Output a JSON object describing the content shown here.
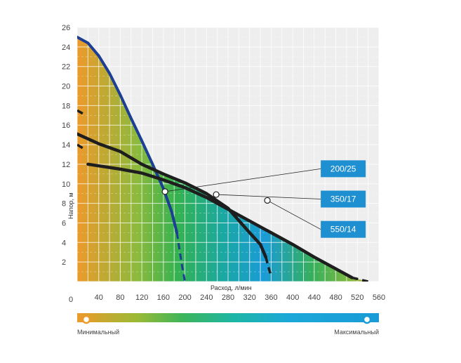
{
  "chart_data": {
    "type": "line",
    "xlabel": "Расход, л/мин",
    "ylabel": "Напор, м",
    "xlim": [
      0,
      560
    ],
    "ylim": [
      0,
      26
    ],
    "x_ticks": [
      "40",
      "80",
      "120",
      "160",
      "200",
      "240",
      "280",
      "320",
      "360",
      "400",
      "440",
      "480",
      "520",
      "560"
    ],
    "y_ticks": [
      "2",
      "4",
      "6",
      "8",
      "10",
      "12",
      "14",
      "16",
      "18",
      "20",
      "22",
      "24",
      "26"
    ],
    "origin_label": "0",
    "series": [
      {
        "name": "200/25",
        "solid": [
          [
            0,
            25
          ],
          [
            20,
            24.4
          ],
          [
            40,
            23.1
          ],
          [
            60,
            21.3
          ],
          [
            80,
            19.1
          ],
          [
            100,
            16.7
          ],
          [
            120,
            14.4
          ],
          [
            140,
            12
          ],
          [
            160,
            9.5
          ],
          [
            175,
            7.2
          ],
          [
            185,
            5
          ]
        ],
        "dashed": [
          [
            185,
            5
          ],
          [
            195,
            1.5
          ],
          [
            200,
            0
          ]
        ],
        "marker": [
          163,
          9.2
        ],
        "label_box": [
          400,
          12.4
        ]
      },
      {
        "name": "350/17",
        "solid": [
          [
            0,
            15.1
          ],
          [
            40,
            14.1
          ],
          [
            80,
            13.3
          ],
          [
            120,
            12
          ],
          [
            160,
            11
          ],
          [
            200,
            10.1
          ],
          [
            240,
            9
          ],
          [
            280,
            7.5
          ],
          [
            320,
            5
          ],
          [
            340,
            3.8
          ],
          [
            350,
            2.5
          ]
        ],
        "dashed": [
          [
            350,
            2.5
          ],
          [
            360,
            0.5
          ]
        ],
        "dashed_left": [
          [
            0,
            17.5
          ],
          [
            13,
            17.1
          ]
        ],
        "marker": [
          258,
          8.9
        ],
        "label_box": [
          400,
          9.3
        ]
      },
      {
        "name": "550/14",
        "solid": [
          [
            20,
            12
          ],
          [
            80,
            11.5
          ],
          [
            120,
            11.1
          ],
          [
            160,
            10.4
          ],
          [
            200,
            9.6
          ],
          [
            240,
            8.6
          ],
          [
            280,
            7.4
          ],
          [
            320,
            6.2
          ],
          [
            360,
            5
          ],
          [
            400,
            3.8
          ],
          [
            440,
            2.5
          ],
          [
            480,
            1.3
          ],
          [
            510,
            0.4
          ]
        ],
        "dashed": [
          [
            510,
            0.4
          ],
          [
            540,
            0
          ]
        ],
        "dashed_left": [
          [
            0,
            14
          ],
          [
            15,
            13.5
          ]
        ],
        "marker": [
          353,
          8.3
        ],
        "label_box": [
          400,
          6.2
        ]
      }
    ],
    "color_scale": {
      "min_label": "Минимальный",
      "max_label": "Максимальный"
    },
    "colors": {
      "orange": "#ec9a2b",
      "green": "#3cb55a",
      "blue": "#1a9bd7",
      "curve": "#1e1e1e",
      "pump_curve": "#1d3f93",
      "label_box": "#1e8fd0"
    }
  }
}
